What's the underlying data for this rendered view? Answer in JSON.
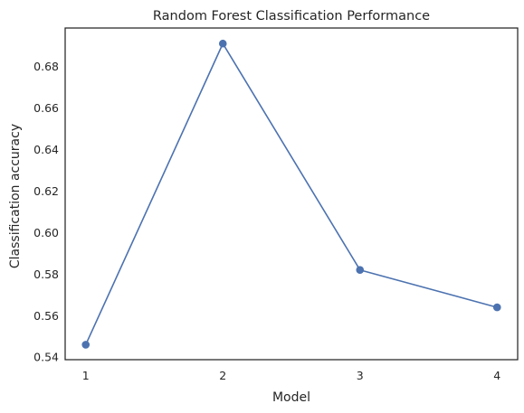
{
  "chart_data": {
    "type": "line",
    "title": "Random Forest Classification Performance",
    "xlabel": "Model",
    "ylabel": "Classification accuracy",
    "x": [
      1,
      2,
      3,
      4
    ],
    "xticks": [
      "1",
      "2",
      "3",
      "4"
    ],
    "xlim": [
      0.85,
      4.15
    ],
    "ylim": [
      0.5388,
      0.6985
    ],
    "yticks": [
      "0.54",
      "0.56",
      "0.58",
      "0.60",
      "0.62",
      "0.64",
      "0.66",
      "0.68"
    ],
    "series": [
      {
        "values": [
          0.546,
          0.691,
          0.582,
          0.564
        ],
        "color": "#4c72b0"
      }
    ],
    "grid": false,
    "markers": true
  }
}
